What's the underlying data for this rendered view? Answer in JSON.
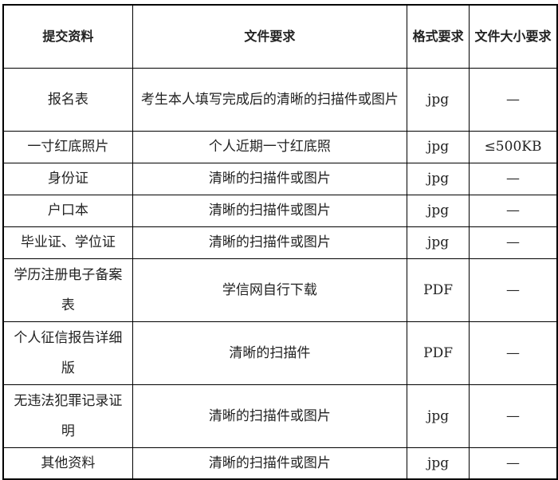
{
  "headers": [
    "提交资料",
    "文件要求",
    "格式要求",
    "文件大小要求"
  ],
  "rows": [
    {
      "name": "报名表",
      "requirement": "考生本人填写完成后的清晰的扫描件或图片",
      "format": "jpg",
      "size": "—"
    },
    {
      "name": "一寸红底照片",
      "requirement": "个人近期一寸红底照",
      "format": "jpg",
      "size": "≤500KB"
    },
    {
      "name": "身份证",
      "requirement": "清晰的扫描件或图片",
      "format": "jpg",
      "size": "—"
    },
    {
      "name": "户口本",
      "requirement": "清晰的扫描件或图片",
      "format": "jpg",
      "size": "—"
    },
    {
      "name": "毕业证、学位证",
      "requirement": "清晰的扫描件或图片",
      "format": "jpg",
      "size": "—"
    },
    {
      "name": "学历注册电子备案表",
      "requirement": "学信网自行下载",
      "format": "PDF",
      "size": "—"
    },
    {
      "name": "个人征信报告详细版",
      "requirement": "清晰的扫描件",
      "format": "PDF",
      "size": "—"
    },
    {
      "name": "无违法犯罪记录证明",
      "requirement": "清晰的扫描件或图片",
      "format": "jpg",
      "size": "—"
    },
    {
      "name": "其他资料",
      "requirement": "清晰的扫描件或图片",
      "format": "jpg",
      "size": "—"
    }
  ]
}
